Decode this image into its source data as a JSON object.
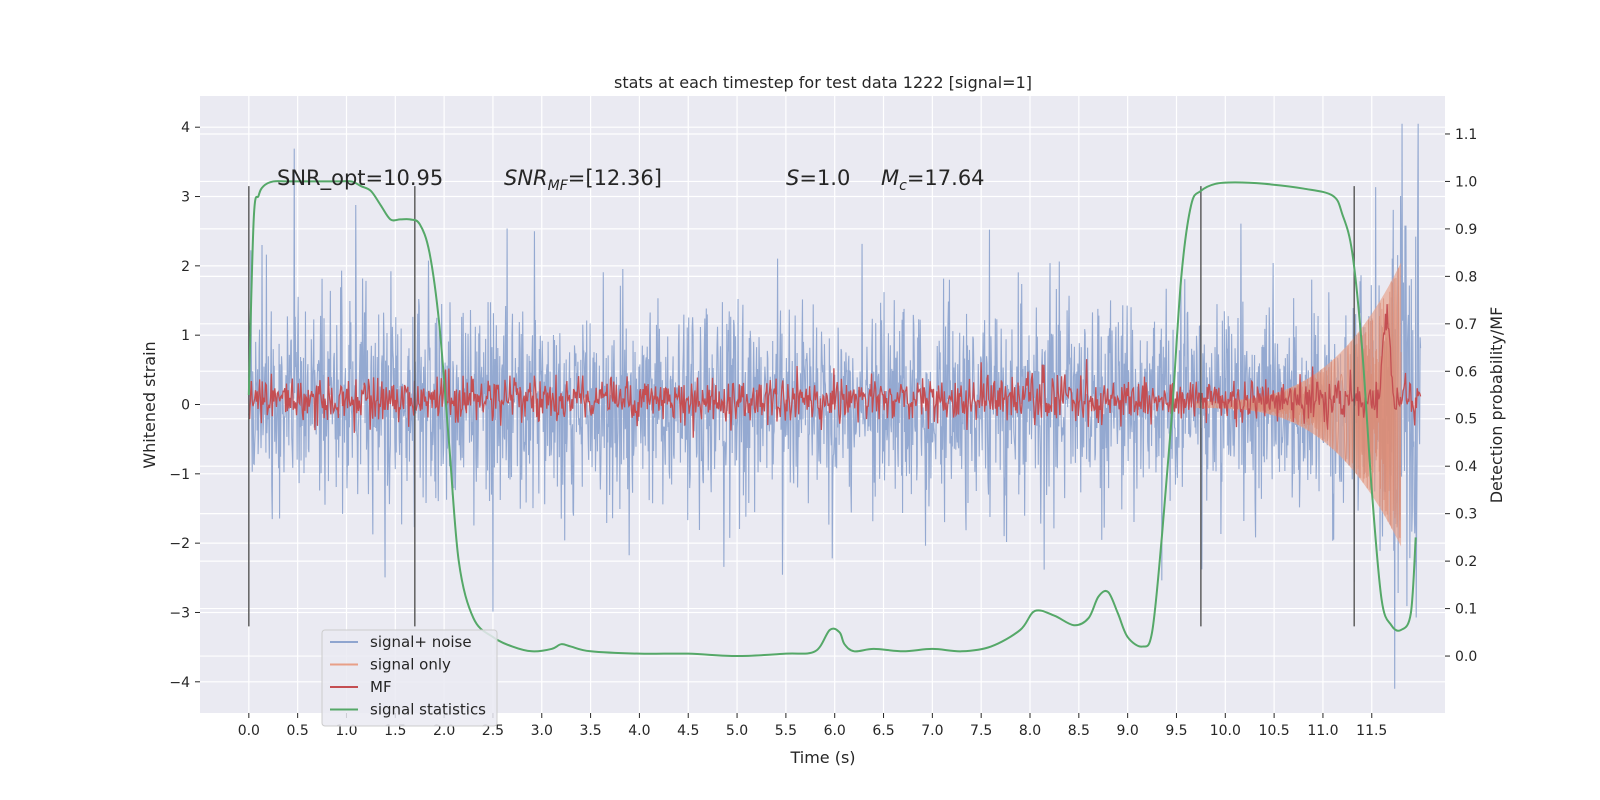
{
  "chart_data": {
    "type": "line",
    "title": "stats at each timestep for test data 1222 [signal=1]",
    "xlabel": "Time (s)",
    "ylabel_left": "Whitened strain",
    "ylabel_right": "Detection probability/MF",
    "xlim": [
      -0.5,
      12.25
    ],
    "ylim_left": [
      -4.45,
      4.45
    ],
    "ylim_right": [
      -0.12,
      1.18
    ],
    "grid": true,
    "legend_position": "lower-left",
    "x_ticks": [
      "0.0",
      "0.5",
      "1.0",
      "1.5",
      "2.0",
      "2.5",
      "3.0",
      "3.5",
      "4.0",
      "4.5",
      "5.0",
      "5.5",
      "6.0",
      "6.5",
      "7.0",
      "7.5",
      "8.0",
      "8.5",
      "9.0",
      "9.5",
      "10.0",
      "10.5",
      "11.0",
      "11.5"
    ],
    "y_ticks_left": [
      "4",
      "3",
      "2",
      "1",
      "0",
      "−1",
      "−2",
      "−3",
      "−4"
    ],
    "y_ticks_right": [
      "1.1",
      "1.0",
      "0.9",
      "0.8",
      "0.7",
      "0.6",
      "0.5",
      "0.4",
      "0.3",
      "0.2",
      "0.1",
      "0.0"
    ],
    "annotations": {
      "snr_opt": {
        "prefix": "SNR_opt=",
        "value": "10.95"
      },
      "snr_mf": {
        "symbol": "SNR",
        "subscript": "MF",
        "suffix": "=[12.36]"
      },
      "s": {
        "symbol": "S",
        "value": "=1.0"
      },
      "mc": {
        "symbol": "M",
        "subscript": "c",
        "value": "=17.64"
      }
    },
    "vertical_markers_x": [
      0.0,
      1.7,
      9.75,
      11.32
    ],
    "vertical_marker_range_left": [
      -3.2,
      3.15
    ],
    "series": [
      {
        "name": "signal+ noise",
        "color": "#8fa5cf",
        "axis": "left",
        "x_range": [
          0.0,
          12.0
        ],
        "typical_amplitude": 1.8,
        "peak_max": 4.05,
        "peak_min": -4.1
      },
      {
        "name": "signal only",
        "color": "#e89f87",
        "axis": "left",
        "x_range": [
          9.7,
          11.8
        ],
        "peak_envelope": 2.0
      },
      {
        "name": "MF",
        "color": "#c44e52",
        "axis": "right",
        "x_range": [
          0.0,
          12.0
        ],
        "level": 0.54,
        "noise": 0.025
      },
      {
        "name": "signal statistics",
        "color": "#55a868",
        "axis": "right",
        "x": [
          0.0,
          0.05,
          0.1,
          0.15,
          0.25,
          0.4,
          0.6,
          0.9,
          1.05,
          1.15,
          1.25,
          1.35,
          1.45,
          1.55,
          1.65,
          1.75,
          1.85,
          1.95,
          2.05,
          2.15,
          2.3,
          2.5,
          2.7,
          2.9,
          3.1,
          3.2,
          3.3,
          3.5,
          4.0,
          4.5,
          5.0,
          5.5,
          5.8,
          5.95,
          6.05,
          6.1,
          6.2,
          6.4,
          6.7,
          7.0,
          7.3,
          7.6,
          7.9,
          8.05,
          8.25,
          8.45,
          8.6,
          8.7,
          8.8,
          8.9,
          9.0,
          9.15,
          9.25,
          9.35,
          9.45,
          9.55,
          9.65,
          9.75,
          9.9,
          10.1,
          10.4,
          10.8,
          11.1,
          11.2,
          11.3,
          11.4,
          11.5,
          11.6,
          11.7,
          11.8,
          11.9,
          11.95
        ],
        "y": [
          0.55,
          0.92,
          0.97,
          0.99,
          1.0,
          1.0,
          1.0,
          1.0,
          1.0,
          0.99,
          0.98,
          0.95,
          0.92,
          0.92,
          0.92,
          0.91,
          0.85,
          0.7,
          0.45,
          0.2,
          0.08,
          0.04,
          0.02,
          0.01,
          0.015,
          0.025,
          0.02,
          0.01,
          0.005,
          0.005,
          0.0,
          0.005,
          0.01,
          0.055,
          0.05,
          0.025,
          0.01,
          0.015,
          0.01,
          0.015,
          0.01,
          0.02,
          0.055,
          0.095,
          0.085,
          0.065,
          0.08,
          0.125,
          0.135,
          0.09,
          0.04,
          0.02,
          0.05,
          0.25,
          0.5,
          0.8,
          0.95,
          0.98,
          0.995,
          0.998,
          0.995,
          0.985,
          0.97,
          0.93,
          0.85,
          0.65,
          0.35,
          0.12,
          0.065,
          0.055,
          0.09,
          0.25
        ]
      }
    ]
  }
}
